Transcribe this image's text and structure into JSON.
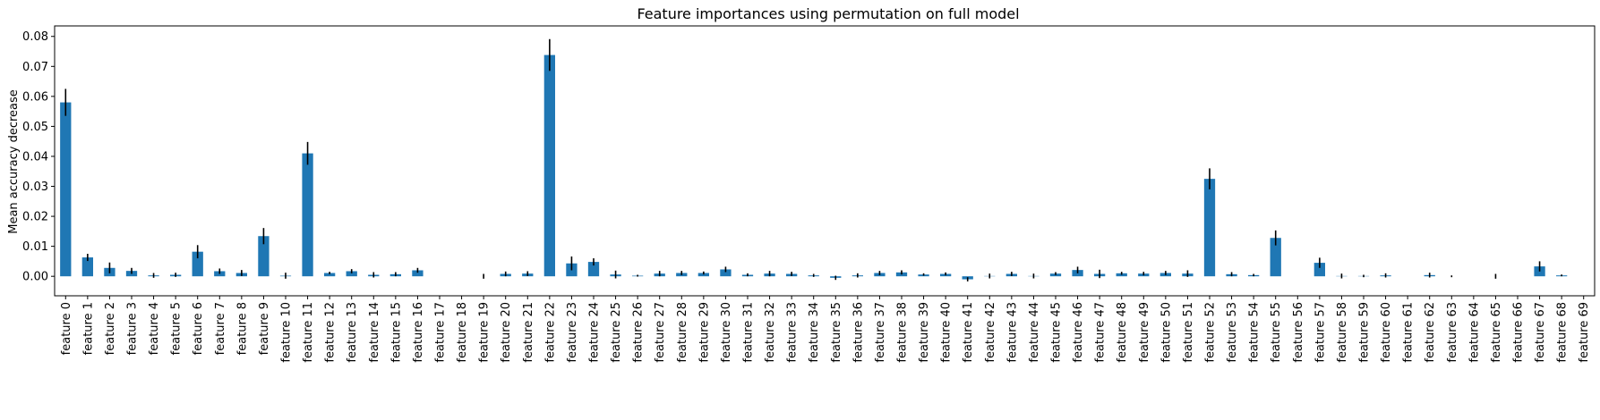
{
  "chart_data": {
    "type": "bar",
    "title": "Feature importances using permutation on full model",
    "xlabel": "",
    "ylabel": "Mean accuracy decrease",
    "ylim": [
      -0.0065,
      0.0835
    ],
    "yticks": [
      0.0,
      0.01,
      0.02,
      0.03,
      0.04,
      0.05,
      0.06,
      0.07,
      0.08
    ],
    "ytick_labels": [
      "0.00",
      "0.01",
      "0.02",
      "0.03",
      "0.04",
      "0.05",
      "0.06",
      "0.07",
      "0.08"
    ],
    "grid": false,
    "legend": "none",
    "bar_color": "#1f77b4",
    "error_color": "#000000",
    "categories": [
      "feature 0",
      "feature 1",
      "feature 2",
      "feature 3",
      "feature 4",
      "feature 5",
      "feature 6",
      "feature 7",
      "feature 8",
      "feature 9",
      "feature 10",
      "feature 11",
      "feature 12",
      "feature 13",
      "feature 14",
      "feature 15",
      "feature 16",
      "feature 17",
      "feature 18",
      "feature 19",
      "feature 20",
      "feature 21",
      "feature 22",
      "feature 23",
      "feature 24",
      "feature 25",
      "feature 26",
      "feature 27",
      "feature 28",
      "feature 29",
      "feature 30",
      "feature 31",
      "feature 32",
      "feature 33",
      "feature 34",
      "feature 35",
      "feature 36",
      "feature 37",
      "feature 38",
      "feature 39",
      "feature 40",
      "feature 41",
      "feature 42",
      "feature 43",
      "feature 44",
      "feature 45",
      "feature 46",
      "feature 47",
      "feature 48",
      "feature 49",
      "feature 50",
      "feature 51",
      "feature 52",
      "feature 53",
      "feature 54",
      "feature 55",
      "feature 56",
      "feature 57",
      "feature 58",
      "feature 59",
      "feature 60",
      "feature 61",
      "feature 62",
      "feature 63",
      "feature 64",
      "feature 65",
      "feature 66",
      "feature 67",
      "feature 68",
      "feature 69"
    ],
    "values": [
      0.058,
      0.0063,
      0.0028,
      0.0018,
      0.0003,
      0.0005,
      0.0082,
      0.0017,
      0.0011,
      0.0134,
      0.0002,
      0.041,
      0.0011,
      0.0017,
      0.0005,
      0.0007,
      0.002,
      0,
      0,
      0,
      0.0008,
      0.0009,
      0.0738,
      0.0043,
      0.0048,
      0.0006,
      0.0002,
      0.0009,
      0.0011,
      0.0011,
      0.0023,
      0.0005,
      0.0009,
      0.0008,
      0.0003,
      -0.0005,
      0.0003,
      0.0011,
      0.0013,
      0.0006,
      0.0008,
      -0.001,
      0.0001,
      0.0008,
      0.0001,
      0.0009,
      0.0021,
      0.0008,
      0.001,
      0.0009,
      0.0011,
      0.0009,
      0.0325,
      0.0007,
      0.0004,
      0.0128,
      0,
      0.0045,
      0.0001,
      0.0001,
      0.0003,
      0,
      0.0004,
      0,
      0,
      0,
      0,
      0.0033,
      0.0003,
      0
    ],
    "errors": [
      0.0045,
      0.0012,
      0.0018,
      0.001,
      0.0008,
      0.0007,
      0.0022,
      0.0009,
      0.001,
      0.0027,
      0.001,
      0.0038,
      0.0004,
      0.0007,
      0.0009,
      0.0007,
      0.0008,
      0,
      0,
      0.0008,
      0.0008,
      0.0008,
      0.0053,
      0.0023,
      0.0012,
      0.0013,
      0.0003,
      0.0009,
      0.0007,
      0.0005,
      0.0009,
      0.0005,
      0.0009,
      0.0007,
      0.0005,
      0.0007,
      0.0007,
      0.0007,
      0.0007,
      0.0004,
      0.0005,
      0.0007,
      0.0008,
      0.0007,
      0.0008,
      0.0005,
      0.0011,
      0.0014,
      0.0005,
      0.0006,
      0.0007,
      0.0011,
      0.0035,
      0.0007,
      0.0004,
      0.0025,
      0,
      0.0017,
      0.0008,
      0.0004,
      0.0007,
      0,
      0.0008,
      0.0003,
      0,
      0.0008,
      0,
      0.0017,
      0.0003,
      0
    ]
  }
}
